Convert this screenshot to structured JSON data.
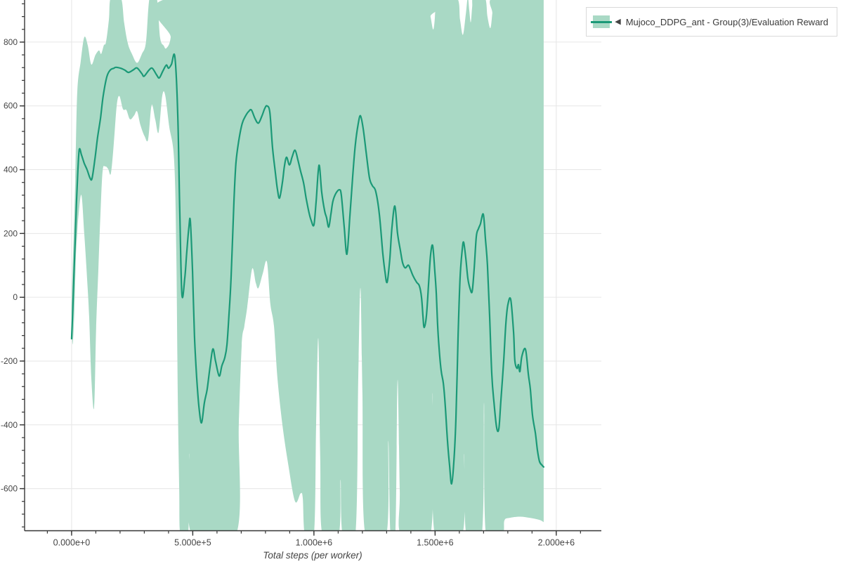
{
  "page": {
    "background": "#ffffff"
  },
  "legend": {
    "collapse_marker": "◀",
    "label": "Mujoco_DDPG_ant - Group(3)/Evaluation Reward"
  },
  "axes": {
    "x": {
      "title": "Total steps (per worker)",
      "range": [
        -194000,
        2186000
      ],
      "minor_tick_step": 100000,
      "major_ticks": [
        {
          "value": 0,
          "label": "0.000e+0"
        },
        {
          "value": 500000,
          "label": "5.000e+5"
        },
        {
          "value": 1000000,
          "label": "1.000e+6"
        },
        {
          "value": 1500000,
          "label": "1.500e+6"
        },
        {
          "value": 2000000,
          "label": "2.000e+6"
        }
      ]
    },
    "y": {
      "title": "",
      "range": [
        -732,
        932
      ],
      "minor_tick_step": 40,
      "major_ticks": [
        {
          "value": -600,
          "label": "-600"
        },
        {
          "value": -400,
          "label": "-400"
        },
        {
          "value": -200,
          "label": "-200"
        },
        {
          "value": 0,
          "label": "0"
        },
        {
          "value": 200,
          "label": "200"
        },
        {
          "value": 400,
          "label": "400"
        },
        {
          "value": 600,
          "label": "600"
        },
        {
          "value": 800,
          "label": "800"
        }
      ]
    }
  },
  "style": {
    "line_color": "#1b9977",
    "band_color": "#a9d9c5",
    "grid_color": "#e6e6e6",
    "spine_color": "#363636",
    "tick_label_color": "#454545",
    "axis_title_color": "#454545",
    "legend_border_color": "#d9d9d9",
    "legend_text_color": "#3a3a3a"
  },
  "chart_data": {
    "type": "line",
    "title": "",
    "xlabel": "Total steps (per worker)",
    "ylabel": "",
    "xlim": [
      -194000,
      2186000
    ],
    "ylim": [
      -732,
      932
    ],
    "grid": true,
    "legend_position": "outside-top-right",
    "series": [
      {
        "name": "Mujoco_DDPG_ant - Group(3)/Evaluation Reward",
        "type": "line_with_band",
        "color": "#1b9977",
        "band_color": "#a9d9c5",
        "x": [
          0,
          4300,
          8700,
          14500,
          20300,
          26100,
          31900,
          40600,
          52200,
          63800,
          75400,
          84100,
          95700,
          107000,
          119000,
          130000,
          145000,
          159000,
          174000,
          183000,
          203000,
          220000,
          235000,
          255000,
          270000,
          290000,
          299000,
          319000,
          333000,
          351000,
          362000,
          377000,
          391000,
          400000,
          412000,
          426000,
          438000,
          446000,
          455000,
          467000,
          475000,
          484000,
          490000,
          499000,
          507000,
          516000,
          525000,
          536000,
          548000,
          559000,
          571000,
          583000,
          594000,
          609000,
          620000,
          632000,
          641000,
          649000,
          658000,
          670000,
          678000,
          690000,
          704000,
          719000,
          731000,
          742000,
          757000,
          771000,
          786000,
          797000,
          806000,
          818000,
          829000,
          841000,
          849000,
          858000,
          870000,
          878000,
          887000,
          899000,
          910000,
          922000,
          934000,
          945000,
          957000,
          968000,
          980000,
          989000,
          1000000,
          1009000,
          1021000,
          1032000,
          1044000,
          1052000,
          1061000,
          1070000,
          1078000,
          1090000,
          1105000,
          1113000,
          1125000,
          1136000,
          1148000,
          1160000,
          1171000,
          1183000,
          1192000,
          1203000,
          1215000,
          1229000,
          1241000,
          1255000,
          1270000,
          1284000,
          1293000,
          1302000,
          1313000,
          1322000,
          1334000,
          1345000,
          1357000,
          1366000,
          1377000,
          1389000,
          1397000,
          1409000,
          1424000,
          1435000,
          1444000,
          1450000,
          1455000,
          1464000,
          1473000,
          1481000,
          1490000,
          1499000,
          1505000,
          1510000,
          1516000,
          1525000,
          1534000,
          1542000,
          1551000,
          1560000,
          1568000,
          1577000,
          1586000,
          1595000,
          1603000,
          1612000,
          1618000,
          1627000,
          1635000,
          1644000,
          1653000,
          1661000,
          1670000,
          1679000,
          1687000,
          1699000,
          1708000,
          1716000,
          1725000,
          1734000,
          1743000,
          1754000,
          1763000,
          1771000,
          1783000,
          1792000,
          1800000,
          1812000,
          1824000,
          1829000,
          1838000,
          1844000,
          1850000,
          1858000,
          1873000,
          1885000,
          1893000,
          1902000,
          1914000,
          1922000,
          1931000,
          1943000,
          1948000
        ],
        "y": [
          -130,
          -50,
          50,
          170,
          300,
          400,
          464,
          447,
          420,
          400,
          375,
          372,
          430,
          500,
          560,
          630,
          690,
          712,
          718,
          721,
          718,
          712,
          705,
          713,
          719,
          701,
          693,
          712,
          718,
          697,
          688,
          710,
          728,
          718,
          730,
          754,
          573,
          280,
          10,
          60,
          140,
          220,
          238,
          80,
          -120,
          -250,
          -340,
          -394,
          -330,
          -290,
          -220,
          -162,
          -200,
          -247,
          -215,
          -190,
          -150,
          -60,
          60,
          300,
          420,
          491,
          545,
          570,
          583,
          587,
          560,
          546,
          570,
          592,
          600,
          580,
          470,
          390,
          340,
          311,
          360,
          410,
          439,
          415,
          440,
          461,
          430,
          395,
          360,
          310,
          264,
          240,
          227,
          300,
          414,
          330,
          271,
          250,
          220,
          260,
          300,
          325,
          337,
          320,
          220,
          135,
          250,
          380,
          480,
          545,
          569,
          530,
          458,
          375,
          350,
          332,
          260,
          140,
          80,
          47,
          120,
          220,
          286,
          200,
          146,
          108,
          92,
          101,
          90,
          67,
          47,
          36,
          0,
          -60,
          -95,
          -60,
          40,
          130,
          162,
          80,
          10,
          -80,
          -155,
          -230,
          -270,
          -340,
          -450,
          -530,
          -585,
          -520,
          -380,
          -120,
          60,
          150,
          172,
          120,
          60,
          28,
          18,
          87,
          190,
          215,
          230,
          260,
          180,
          100,
          -60,
          -243,
          -330,
          -409,
          -412,
          -330,
          -199,
          -82,
          -25,
          -7,
          -111,
          -199,
          -223,
          -211,
          -233,
          -185,
          -163,
          -243,
          -287,
          -370,
          -427,
          -478,
          -515,
          -528,
          -532
        ],
        "band_upper": {
          "x": [
            0,
            2900,
            8700,
            14500,
            23200,
            37700,
            52200,
            66700,
            81200,
            98600,
            113000,
            122000,
            133000,
            142000,
            154000,
            162000,
            203000,
            217000,
            232000,
            249000,
            270000,
            290000,
            307000,
            322000,
            351000,
            365000,
            380000,
            391000,
            409000,
            420000,
            1464000,
            1481000,
            1493000,
            1502000,
            1508000,
            1589000,
            1603000,
            1615000,
            1627000,
            1635000,
            1641000,
            1647000,
            1653000,
            1658000,
            1705000,
            1716000,
            1728000,
            1736000,
            1742000,
            1948000
          ],
          "y": [
            -30,
            60,
            200,
            350,
            640,
            740,
            815,
            790,
            730,
            760,
            774,
            763,
            790,
            800,
            870,
            940,
            940,
            860,
            796,
            763,
            735,
            763,
            800,
            940,
            940,
            815,
            789,
            781,
            815,
            940,
            940,
            880,
            840,
            900,
            940,
            940,
            870,
            823,
            890,
            940,
            900,
            862,
            910,
            940,
            940,
            880,
            844,
            890,
            940,
            940
          ]
        },
        "band_lower": {
          "x": [
            0,
            4300,
            11600,
            17400,
            23200,
            29000,
            40600,
            52200,
            63800,
            72500,
            81200,
            92800,
            101000,
            110000,
            119000,
            128000,
            139000,
            151000,
            162000,
            174000,
            186000,
            197000,
            212000,
            226000,
            241000,
            258000,
            270000,
            284000,
            301000,
            316000,
            330000,
            345000,
            359000,
            374000,
            386000,
            403000,
            423000,
            432000,
            438000,
            444000,
            449000,
            481000,
            487000,
            496000,
            678000,
            690000,
            702000,
            713000,
            725000,
            745000,
            760000,
            771000,
            789000,
            806000,
            820000,
            835000,
            849000,
            870000,
            893000,
            922000,
            945000,
            954000,
            963000,
            1000000,
            1009000,
            1018000,
            1026000,
            1035000,
            1102000,
            1110000,
            1119000,
            1171000,
            1183000,
            1192000,
            1200000,
            1212000,
            1299000,
            1307000,
            1316000,
            1336000,
            1345000,
            1354000,
            1360000,
            1481000,
            1490000,
            1499000,
            1612000,
            1620000,
            1629000,
            1693000,
            1702000,
            1710000,
            1777000,
            1786000,
            1806000,
            1850000,
            1893000,
            1931000,
            1948000
          ],
          "y": [
            -50,
            -148,
            -40,
            120,
            200,
            260,
            320,
            200,
            60,
            -60,
            -250,
            -346,
            -100,
            80,
            260,
            396,
            410,
            402,
            388,
            480,
            600,
            631,
            590,
            587,
            558,
            570,
            583,
            540,
            505,
            495,
            602,
            558,
            517,
            631,
            634,
            535,
            432,
            150,
            -300,
            -600,
            -745,
            -745,
            -490,
            -745,
            -745,
            -400,
            -150,
            -90,
            -30,
            89,
            45,
            29,
            75,
            111,
            -20,
            -90,
            -250,
            -400,
            -520,
            -640,
            -615,
            -630,
            -745,
            -745,
            -400,
            -129,
            -500,
            -745,
            -745,
            -572,
            -745,
            -745,
            -250,
            29,
            -300,
            -745,
            -745,
            -450,
            -745,
            -745,
            -260,
            -600,
            -745,
            -745,
            -300,
            -745,
            -745,
            -491,
            -745,
            -745,
            -331,
            -745,
            -745,
            -700,
            -692,
            -688,
            -692,
            -698,
            -705
          ]
        }
      }
    ]
  }
}
